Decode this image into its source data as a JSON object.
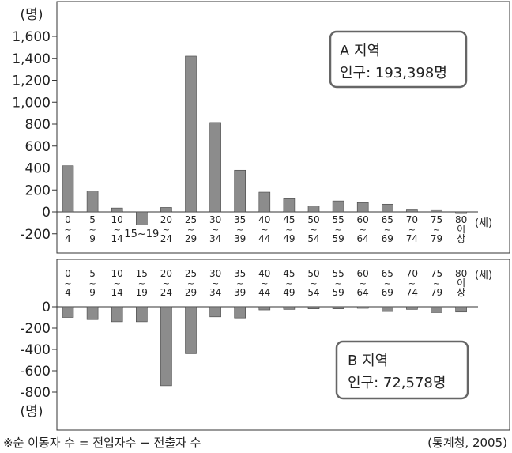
{
  "chart_data": [
    {
      "type": "bar",
      "region_label": "A 지역",
      "population_label": "인구: 193,398명",
      "ylabel": "(명)",
      "xlabel": "(세)",
      "ylim": [
        -200,
        1600
      ],
      "y_ticks": [
        -200,
        0,
        200,
        400,
        600,
        800,
        "1,000",
        "1,200",
        "1,400",
        "1,600"
      ],
      "categories": [
        "0~4",
        "5~9",
        "10~14",
        "15~19",
        "20~24",
        "25~29",
        "30~34",
        "35~39",
        "40~44",
        "45~49",
        "50~54",
        "55~59",
        "60~64",
        "65~69",
        "70~74",
        "75~79",
        "80 이상"
      ],
      "values": [
        420,
        190,
        35,
        -120,
        40,
        1420,
        815,
        380,
        180,
        120,
        55,
        100,
        85,
        70,
        25,
        20,
        -15
      ],
      "bar_color": "#8c8c8c"
    },
    {
      "type": "bar",
      "region_label": "B 지역",
      "population_label": "인구: 72,578명",
      "ylabel": "(명)",
      "xlabel": "(세)",
      "ylim": [
        -800,
        0
      ],
      "y_ticks": [
        0,
        -200,
        -400,
        -600,
        -800
      ],
      "categories": [
        "0~4",
        "5~9",
        "10~14",
        "15~19",
        "20~24",
        "25~29",
        "30~34",
        "35~39",
        "40~44",
        "45~49",
        "50~54",
        "55~59",
        "60~64",
        "65~69",
        "70~74",
        "75~79",
        "80 이상"
      ],
      "values": [
        -100,
        -120,
        -140,
        -140,
        -740,
        -440,
        -95,
        -105,
        -30,
        -25,
        -20,
        -20,
        -15,
        -45,
        -25,
        -55,
        -50
      ],
      "bar_color": "#8c8c8c"
    }
  ],
  "footnote": "※순 이동자 수 = 전입자수 − 전출자 수",
  "source": "(통계청, 2005)"
}
